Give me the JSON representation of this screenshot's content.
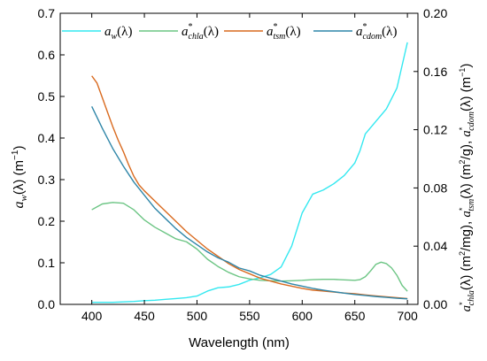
{
  "chart_data": {
    "type": "line",
    "xlabel": "Wavelength (nm)",
    "ylabel_left": "a_w(λ) (m⁻¹)",
    "ylabel_right": "a*chla(λ) (m²/mg), a*tsm(λ) (m²/g), a*cdom(λ) (m⁻¹)",
    "xlim": [
      370,
      710
    ],
    "ylim_left": [
      0,
      0.7
    ],
    "ylim_right": [
      0,
      0.2
    ],
    "x_ticks": [
      400,
      450,
      500,
      550,
      600,
      650,
      700
    ],
    "y_ticks_left": [
      "0.0",
      "0.1",
      "0.2",
      "0.3",
      "0.4",
      "0.5",
      "0.6",
      "0.7"
    ],
    "y_ticks_right": [
      "0.00",
      "0.04",
      "0.08",
      "0.12",
      "0.16",
      "0.20"
    ],
    "grid": false,
    "legend_position": "top",
    "series": [
      {
        "name": "a_w(λ)",
        "legend": {
          "base": "a",
          "sub": "w",
          "sup": "",
          "tail": "(λ)"
        },
        "axis": "left",
        "color": "#33e8f0",
        "x": [
          400,
          410,
          420,
          430,
          440,
          450,
          460,
          470,
          480,
          490,
          500,
          510,
          520,
          530,
          540,
          550,
          560,
          570,
          580,
          590,
          600,
          610,
          620,
          630,
          640,
          650,
          655,
          660,
          670,
          680,
          690,
          700
        ],
        "y": [
          0.005,
          0.005,
          0.005,
          0.006,
          0.007,
          0.009,
          0.01,
          0.012,
          0.014,
          0.016,
          0.02,
          0.032,
          0.04,
          0.042,
          0.048,
          0.058,
          0.064,
          0.072,
          0.09,
          0.14,
          0.22,
          0.265,
          0.275,
          0.29,
          0.31,
          0.34,
          0.37,
          0.41,
          0.44,
          0.47,
          0.52,
          0.63
        ]
      },
      {
        "name": "a*chla(λ)",
        "legend": {
          "base": "a",
          "sub": "chla",
          "sup": "*",
          "tail": "(λ)"
        },
        "axis": "right",
        "color": "#6cc584",
        "x": [
          400,
          405,
          410,
          420,
          430,
          440,
          450,
          460,
          470,
          480,
          490,
          500,
          510,
          520,
          530,
          540,
          550,
          560,
          570,
          580,
          590,
          600,
          610,
          620,
          630,
          640,
          650,
          655,
          660,
          665,
          670,
          675,
          680,
          685,
          690,
          695,
          700
        ],
        "y": [
          0.065,
          0.067,
          0.069,
          0.07,
          0.0695,
          0.065,
          0.058,
          0.053,
          0.049,
          0.045,
          0.043,
          0.038,
          0.031,
          0.026,
          0.022,
          0.019,
          0.0175,
          0.0165,
          0.0162,
          0.016,
          0.0162,
          0.0165,
          0.017,
          0.0172,
          0.0172,
          0.0168,
          0.0165,
          0.017,
          0.019,
          0.023,
          0.0275,
          0.029,
          0.028,
          0.025,
          0.02,
          0.013,
          0.009
        ]
      },
      {
        "name": "a*tsm(λ)",
        "legend": {
          "base": "a",
          "sub": "tsm",
          "sup": "*",
          "tail": "(λ)"
        },
        "axis": "right",
        "color": "#d96a1f",
        "x": [
          400,
          405,
          410,
          415,
          420,
          425,
          430,
          435,
          440,
          445,
          450,
          460,
          470,
          480,
          490,
          500,
          510,
          520,
          530,
          540,
          550,
          560,
          570,
          580,
          590,
          600,
          610,
          620,
          630,
          640,
          650,
          660,
          670,
          680,
          690,
          700
        ],
        "y": [
          0.157,
          0.152,
          0.142,
          0.132,
          0.122,
          0.113,
          0.105,
          0.096,
          0.088,
          0.082,
          0.078,
          0.071,
          0.064,
          0.057,
          0.05,
          0.044,
          0.038,
          0.033,
          0.028,
          0.024,
          0.021,
          0.018,
          0.016,
          0.014,
          0.0125,
          0.011,
          0.0098,
          0.0092,
          0.0085,
          0.0078,
          0.0073,
          0.0065,
          0.0058,
          0.0052,
          0.0046,
          0.004
        ]
      },
      {
        "name": "a*cdom(λ)",
        "legend": {
          "base": "a",
          "sub": "cdom",
          "sup": "*",
          "tail": "(λ)"
        },
        "axis": "right",
        "color": "#2f86a8",
        "x": [
          400,
          410,
          420,
          430,
          440,
          450,
          460,
          470,
          480,
          490,
          500,
          510,
          520,
          530,
          540,
          550,
          560,
          570,
          580,
          590,
          600,
          610,
          620,
          630,
          640,
          650,
          660,
          670,
          680,
          690,
          700
        ],
        "y": [
          0.136,
          0.121,
          0.107,
          0.095,
          0.084,
          0.075,
          0.066,
          0.059,
          0.052,
          0.046,
          0.041,
          0.036,
          0.032,
          0.029,
          0.025,
          0.023,
          0.02,
          0.018,
          0.016,
          0.014,
          0.0125,
          0.011,
          0.0098,
          0.0087,
          0.0077,
          0.0068,
          0.0061,
          0.0054,
          0.0048,
          0.0042,
          0.0038
        ]
      }
    ]
  }
}
